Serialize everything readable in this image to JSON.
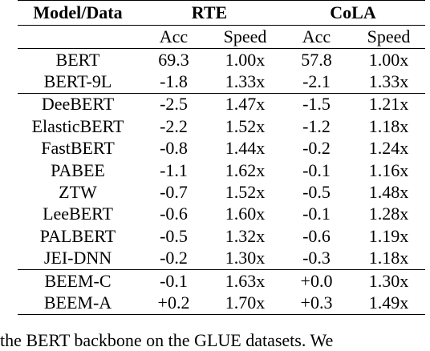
{
  "table": {
    "header": {
      "model": "Model/Data",
      "groups": [
        "RTE",
        "CoLA"
      ],
      "metrics": [
        "Acc",
        "Speed",
        "Acc",
        "Speed"
      ]
    },
    "sections": [
      {
        "rows": [
          {
            "model": "BERT",
            "values": [
              "69.3",
              "1.00x",
              "57.8",
              "1.00x"
            ],
            "bold": [
              false,
              false,
              false,
              false
            ]
          },
          {
            "model": "BERT-9L",
            "values": [
              "-1.8",
              "1.33x",
              "-2.1",
              "1.33x"
            ],
            "bold": [
              false,
              false,
              false,
              false
            ]
          }
        ]
      },
      {
        "rows": [
          {
            "model": "DeeBERT",
            "values": [
              "-2.5",
              "1.47x",
              "-1.5",
              "1.21x"
            ],
            "bold": [
              false,
              false,
              false,
              false
            ]
          },
          {
            "model": "ElasticBERT",
            "values": [
              "-2.2",
              "1.52x",
              "-1.2",
              "1.18x"
            ],
            "bold": [
              false,
              false,
              false,
              false
            ]
          },
          {
            "model": "FastBERT",
            "values": [
              "-0.8",
              "1.44x",
              "-0.2",
              "1.24x"
            ],
            "bold": [
              false,
              false,
              false,
              false
            ]
          },
          {
            "model": "PABEE",
            "values": [
              "-1.1",
              "1.62x",
              "-0.1",
              "1.16x"
            ],
            "bold": [
              false,
              false,
              false,
              false
            ]
          },
          {
            "model": "ZTW",
            "values": [
              "-0.7",
              "1.52x",
              "-0.5",
              "1.48x"
            ],
            "bold": [
              false,
              false,
              false,
              false
            ]
          },
          {
            "model": "LeeBERT",
            "values": [
              "-0.6",
              "1.60x",
              "-0.1",
              "1.28x"
            ],
            "bold": [
              false,
              false,
              false,
              false
            ]
          },
          {
            "model": "PALBERT",
            "values": [
              "-0.5",
              "1.32x",
              "-0.6",
              "1.19x"
            ],
            "bold": [
              false,
              false,
              false,
              false
            ]
          },
          {
            "model": "JEI-DNN",
            "values": [
              "-0.2",
              "1.30x",
              "-0.3",
              "1.18x"
            ],
            "bold": [
              false,
              false,
              false,
              false
            ]
          }
        ]
      },
      {
        "rows": [
          {
            "model": "BEEM-C",
            "values": [
              "-0.1",
              "1.63x",
              "+0.0",
              "1.30x"
            ],
            "bold": [
              false,
              false,
              false,
              false
            ]
          },
          {
            "model": "BEEM-A",
            "values": [
              "+0.2",
              "1.70x",
              "+0.3",
              "1.49x"
            ],
            "bold": [
              true,
              true,
              true,
              true
            ]
          }
        ]
      }
    ]
  },
  "caption_fragment": "the BERT backbone on the GLUE datasets. We"
}
